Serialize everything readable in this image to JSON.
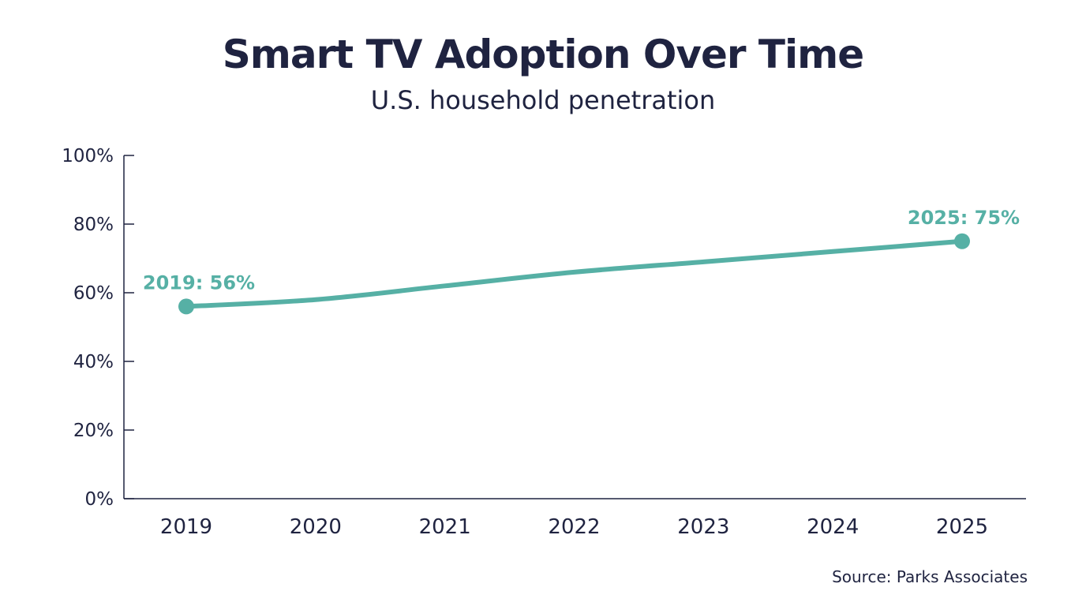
{
  "chart_data": {
    "type": "line",
    "title": "Smart TV Adoption Over Time",
    "subtitle": "U.S. household penetration",
    "xlabel": "",
    "ylabel": "",
    "categories": [
      "2019",
      "2020",
      "2021",
      "2022",
      "2023",
      "2024",
      "2025"
    ],
    "values": [
      56,
      58,
      62,
      66,
      69,
      72,
      75
    ],
    "ylim": [
      0,
      100
    ],
    "yticks": [
      "0%",
      "20%",
      "40%",
      "60%",
      "80%",
      "100%"
    ],
    "grid": false,
    "annotations": [
      {
        "index": 0,
        "text": "2019: 56%"
      },
      {
        "index": 6,
        "text": "2025: 75%"
      }
    ],
    "source": "Source: Parks Associates",
    "colors": {
      "line": "#56b0a5",
      "text": "#1f2340",
      "axis": "#1f2340"
    }
  }
}
